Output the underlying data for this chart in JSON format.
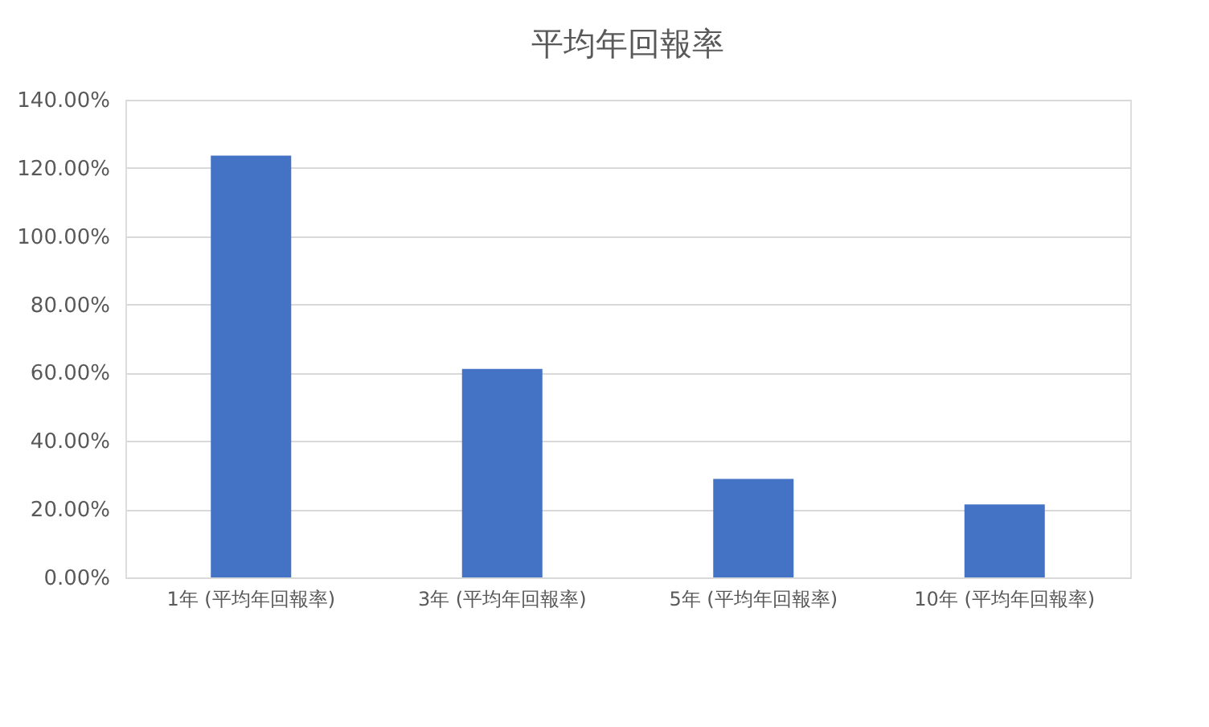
{
  "chart_data": {
    "type": "bar",
    "title": "平均年回報率",
    "categories": [
      "1年 (平均年回報率)",
      "3年 (平均年回報率)",
      "5年 (平均年回報率)",
      "10年 (平均年回報率)"
    ],
    "values": [
      123.6,
      61.1,
      28.9,
      21.4
    ],
    "color": "#4472c4",
    "ylim": [
      0,
      140
    ],
    "yticks": [
      {
        "value": 0,
        "label": "0.00%"
      },
      {
        "value": 20,
        "label": "20.00%"
      },
      {
        "value": 40,
        "label": "40.00%"
      },
      {
        "value": 60,
        "label": "60.00%"
      },
      {
        "value": 80,
        "label": "80.00%"
      },
      {
        "value": 100,
        "label": "100.00%"
      },
      {
        "value": 120,
        "label": "120.00%"
      },
      {
        "value": 140,
        "label": "140.00%"
      }
    ],
    "grid": "y"
  }
}
